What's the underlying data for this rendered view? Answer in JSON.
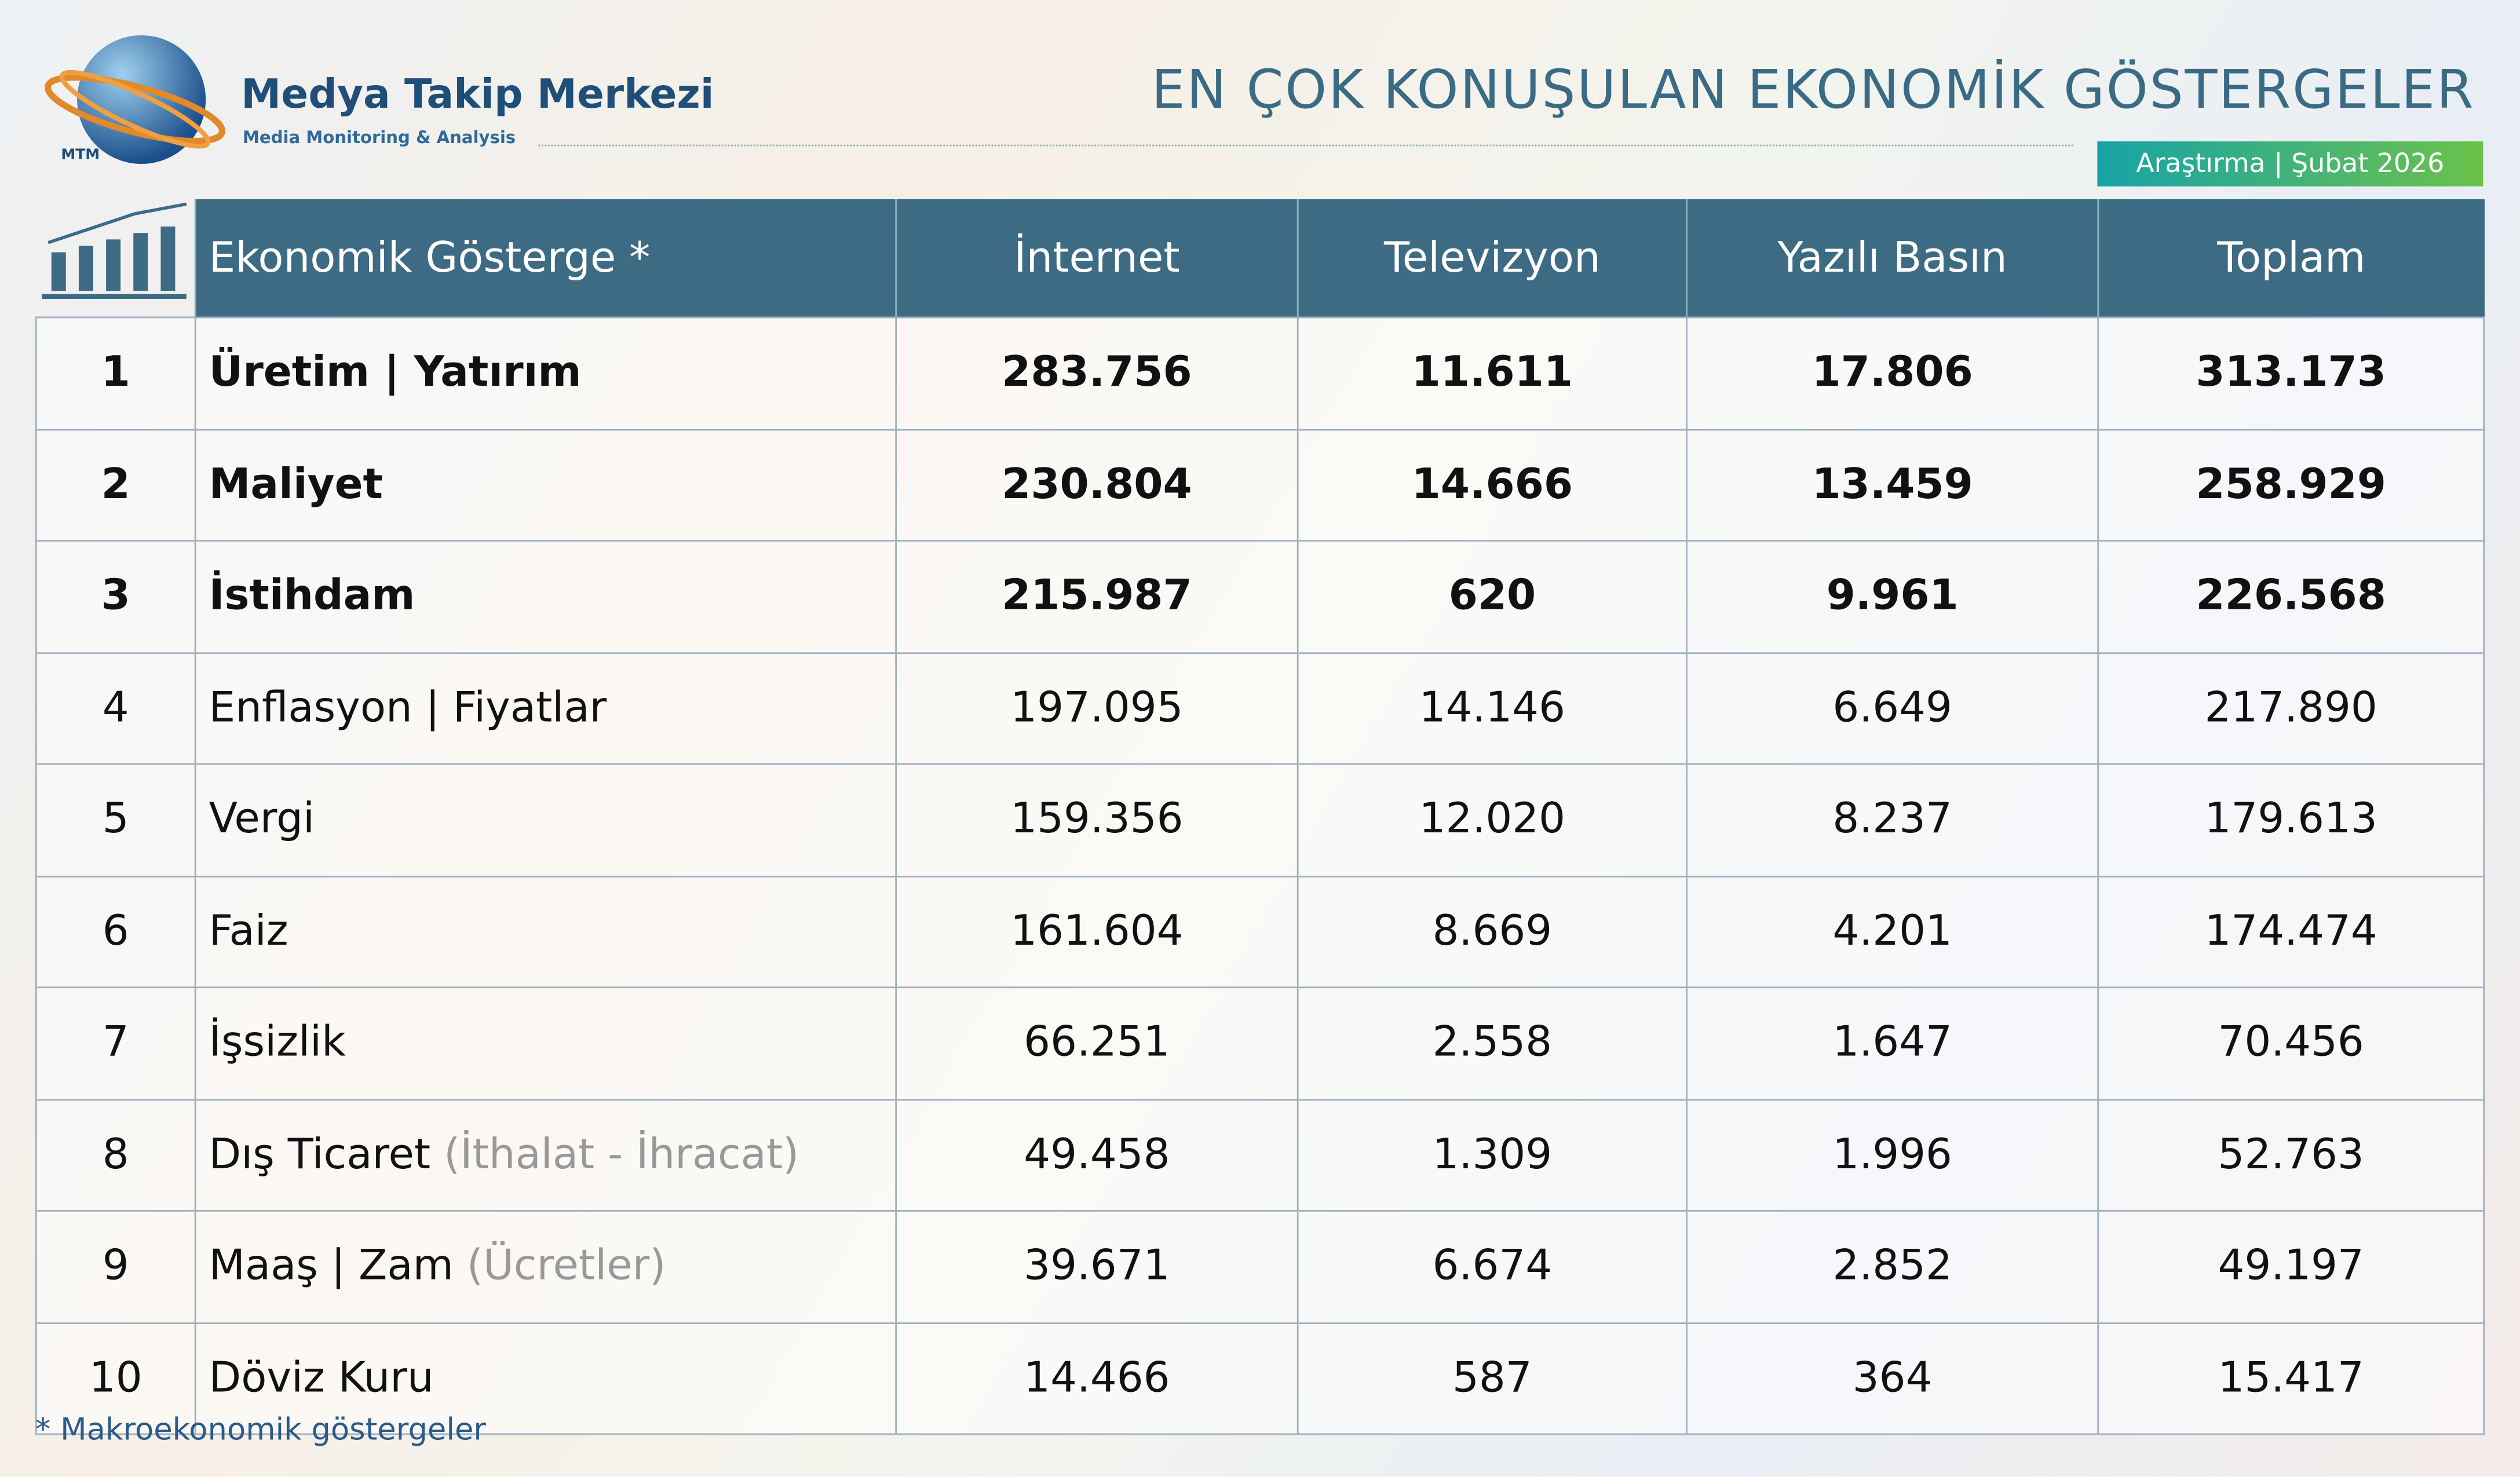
{
  "header": {
    "logo_mark": "MTM",
    "logo_title": "Medya Takip Merkezi",
    "logo_subtitle": "Media Monitoring & Analysis",
    "title": "EN ÇOK KONUŞULAN EKONOMİK GÖSTERGELER",
    "badge": "Araştırma | Şubat 2026"
  },
  "table": {
    "columns": [
      "Ekonomik Gösterge *",
      "İnternet",
      "Televizyon",
      "Yazılı Basın",
      "Toplam"
    ],
    "rows": [
      {
        "rank": "1",
        "name": "Üretim | Yatırım",
        "values": [
          "283.756",
          "11.611",
          "17.806",
          "313.173"
        ]
      },
      {
        "rank": "2",
        "name": "Maliyet",
        "values": [
          "230.804",
          "14.666",
          "13.459",
          "258.929"
        ]
      },
      {
        "rank": "3",
        "name": "İstihdam",
        "values": [
          "215.987",
          "620",
          "9.961",
          "226.568"
        ]
      },
      {
        "rank": "4",
        "name": "Enflasyon | Fiyatlar",
        "values": [
          "197.095",
          "14.146",
          "6.649",
          "217.890"
        ]
      },
      {
        "rank": "5",
        "name": "Vergi",
        "values": [
          "159.356",
          "12.020",
          "8.237",
          "179.613"
        ]
      },
      {
        "rank": "6",
        "name": "Faiz",
        "values": [
          "161.604",
          "8.669",
          "4.201",
          "174.474"
        ]
      },
      {
        "rank": "7",
        "name": "İşsizlik",
        "values": [
          "66.251",
          "2.558",
          "1.647",
          "70.456"
        ]
      },
      {
        "rank": "8",
        "name": "Dış Ticaret",
        "note": "(İthalat - İhracat)",
        "values": [
          "49.458",
          "1.309",
          "1.996",
          "52.763"
        ]
      },
      {
        "rank": "9",
        "name": "Maaş | Zam",
        "note": "(Ücretler)",
        "values": [
          "39.671",
          "6.674",
          "2.852",
          "49.197"
        ]
      },
      {
        "rank": "10",
        "name": "Döviz Kuru",
        "values": [
          "14.466",
          "587",
          "364",
          "15.417"
        ]
      }
    ]
  },
  "footnote": "* Makroekonomik göstergeler"
}
